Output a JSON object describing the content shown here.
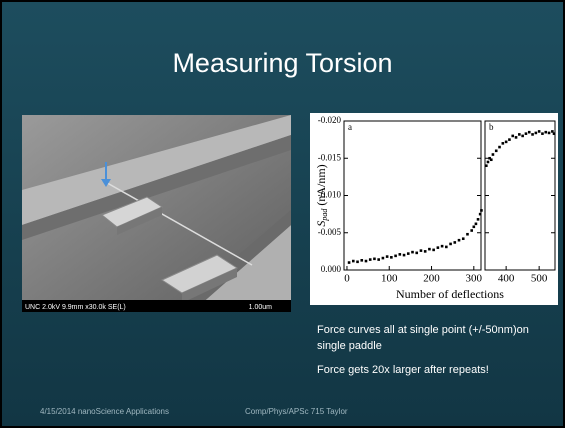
{
  "slide": {
    "title": "Measuring Torsion",
    "bullets": [
      "Force curves all at single point (+/-50nm)on single paddle",
      "Force gets 20x larger after repeats!"
    ],
    "footer_left": "4/15/2014 nanoScience Applications",
    "footer_right": "Comp/Phys/APSc 715 Taylor"
  },
  "image": {
    "caption": "UNC 2.0kV 9.9mm x30.0k SE(L)",
    "scale": "1.00um"
  },
  "chart_data": {
    "type": "scatter",
    "ylabel": "S",
    "ylabel_sub": "pad",
    "ylabel_unit": "(nA/nm)",
    "xlabel": "Number of deflections",
    "color": "#000000",
    "ylim": [
      0,
      -0.02
    ],
    "yticks": [
      {
        "value": 0,
        "label": "0.000"
      },
      -0.005,
      {
        "value": -0.01,
        "label": "-0.010"
      },
      -0.015,
      {
        "value": -0.02,
        "label": "-0.020"
      }
    ],
    "panels": [
      {
        "label": "a",
        "xlim": [
          -7,
          317
        ],
        "xticks": [
          0,
          100,
          200,
          300
        ],
        "x": [
          5,
          15,
          25,
          35,
          45,
          55,
          65,
          75,
          85,
          95,
          105,
          115,
          125,
          135,
          145,
          155,
          165,
          175,
          185,
          195,
          205,
          215,
          225,
          235,
          245,
          255,
          265,
          275,
          285,
          295,
          300,
          305,
          310,
          315,
          318
        ],
        "values": [
          -0.001,
          -0.0012,
          -0.0011,
          -0.0013,
          -0.0012,
          -0.0014,
          -0.0015,
          -0.0014,
          -0.0016,
          -0.0018,
          -0.0017,
          -0.0019,
          -0.0021,
          -0.002,
          -0.0022,
          -0.0024,
          -0.0023,
          -0.0026,
          -0.0025,
          -0.0028,
          -0.0027,
          -0.003,
          -0.0032,
          -0.0031,
          -0.0035,
          -0.0037,
          -0.004,
          -0.0042,
          -0.0048,
          -0.0053,
          -0.0058,
          -0.0062,
          -0.0068,
          -0.0075,
          -0.008
        ]
      },
      {
        "label": "b",
        "xlim": [
          336,
          548
        ],
        "xticks": [
          400,
          500
        ],
        "x": [
          340,
          345,
          350,
          355,
          360,
          370,
          380,
          390,
          400,
          410,
          420,
          430,
          440,
          450,
          460,
          470,
          480,
          490,
          500,
          510,
          520,
          530,
          540,
          545
        ],
        "values": [
          -0.014,
          -0.0145,
          -0.015,
          -0.0148,
          -0.0155,
          -0.016,
          -0.0165,
          -0.017,
          -0.0172,
          -0.0175,
          -0.018,
          -0.0178,
          -0.0182,
          -0.018,
          -0.0183,
          -0.0185,
          -0.0182,
          -0.0184,
          -0.0186,
          -0.0183,
          -0.0185,
          -0.0184,
          -0.0186,
          -0.0183
        ]
      }
    ]
  }
}
